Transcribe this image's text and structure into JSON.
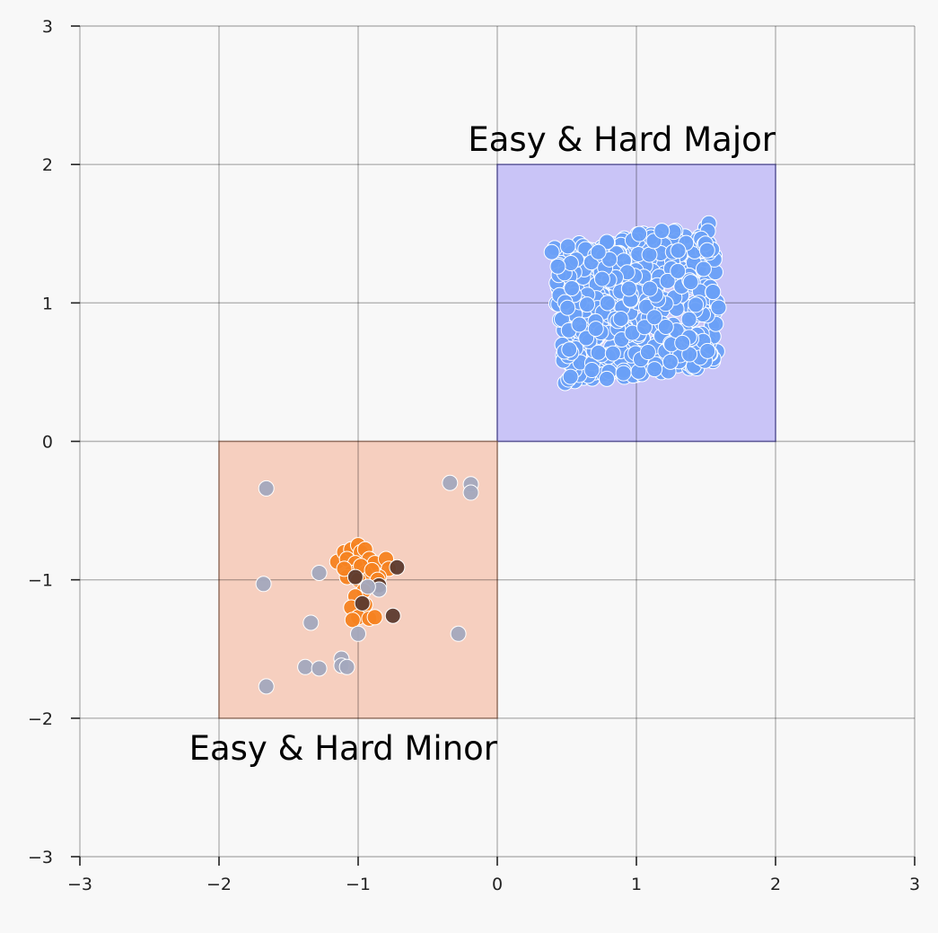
{
  "chart_data": {
    "type": "scatter",
    "title": "",
    "xlabel": "",
    "ylabel": "",
    "xlim": [
      -3,
      3
    ],
    "ylim": [
      -3,
      3
    ],
    "grid": true,
    "x_ticks": [
      -3,
      -2,
      -1,
      0,
      1,
      2,
      3
    ],
    "y_ticks": [
      -3,
      -2,
      -1,
      0,
      1,
      2,
      3
    ],
    "x_tick_labels": [
      "−3",
      "−2",
      "−1",
      "0",
      "1",
      "2",
      "3"
    ],
    "y_tick_labels": [
      "−3",
      "−2",
      "−1",
      "0",
      "1",
      "2",
      "3"
    ],
    "regions": [
      {
        "label": "Easy & Hard Major",
        "x0": 0,
        "x1": 2,
        "y0": 0,
        "y1": 2,
        "fill": "#c9c4f7",
        "stroke": "#7f79d0",
        "label_anchor": "end",
        "label_x": 2.0,
        "label_y": 2.1
      },
      {
        "label": "Easy & Hard Minor",
        "x0": -2,
        "x1": 0,
        "y0": -2,
        "y1": 0,
        "fill": "#f6cfbf",
        "stroke": "#c99a86",
        "label_anchor": "end",
        "label_x": 0.0,
        "label_y": -2.3
      }
    ],
    "series": [
      {
        "color": "#6aa0f7",
        "cluster": {
          "corners": [
            [
              0.38,
              1.4
            ],
            [
              1.55,
              1.58
            ],
            [
              1.62,
              0.55
            ],
            [
              0.48,
              0.41
            ]
          ],
          "count": 420,
          "seed": 7
        },
        "points": [
          [
            0.45,
            1.38
          ],
          [
            0.53,
            1.36
          ],
          [
            0.6,
            1.3
          ],
          [
            0.48,
            1.21
          ],
          [
            0.52,
            1.12
          ],
          [
            0.45,
            1.02
          ],
          [
            0.48,
            0.88
          ],
          [
            0.52,
            0.78
          ],
          [
            0.5,
            0.7
          ],
          [
            0.56,
            0.6
          ],
          [
            0.55,
            0.53
          ],
          [
            0.62,
            0.46
          ],
          [
            0.7,
            0.58
          ],
          [
            0.8,
            0.48
          ],
          [
            0.9,
            0.52
          ],
          [
            1.0,
            0.48
          ],
          [
            1.1,
            0.53
          ],
          [
            1.18,
            0.5
          ],
          [
            1.3,
            0.55
          ],
          [
            1.38,
            0.53
          ],
          [
            1.45,
            0.58
          ],
          [
            1.55,
            0.58
          ],
          [
            1.58,
            0.65
          ],
          [
            1.52,
            0.75
          ],
          [
            1.55,
            0.85
          ],
          [
            1.5,
            0.95
          ],
          [
            1.55,
            1.05
          ],
          [
            1.5,
            1.15
          ],
          [
            1.45,
            1.25
          ],
          [
            1.38,
            1.35
          ],
          [
            1.35,
            1.48
          ],
          [
            1.28,
            1.52
          ],
          [
            1.15,
            1.48
          ],
          [
            1.05,
            1.5
          ],
          [
            0.95,
            1.45
          ],
          [
            0.85,
            1.42
          ],
          [
            0.75,
            1.4
          ],
          [
            0.68,
            1.38
          ],
          [
            0.7,
            1.2
          ],
          [
            0.8,
            1.25
          ],
          [
            0.92,
            1.3
          ],
          [
            1.0,
            1.38
          ],
          [
            1.12,
            1.35
          ],
          [
            1.22,
            1.3
          ],
          [
            1.3,
            1.2
          ],
          [
            1.38,
            1.12
          ],
          [
            1.42,
            1.0
          ],
          [
            1.4,
            0.88
          ],
          [
            1.35,
            0.8
          ],
          [
            1.3,
            0.68
          ],
          [
            1.22,
            0.62
          ],
          [
            1.1,
            0.68
          ],
          [
            1.0,
            0.75
          ],
          [
            0.92,
            0.7
          ],
          [
            0.82,
            0.68
          ],
          [
            0.72,
            0.75
          ],
          [
            0.65,
            0.82
          ],
          [
            0.62,
            0.95
          ],
          [
            0.65,
            1.05
          ],
          [
            0.75,
            1.1
          ],
          [
            0.85,
            1.05
          ],
          [
            0.95,
            1.1
          ],
          [
            1.05,
            1.15
          ],
          [
            1.15,
            1.08
          ],
          [
            1.22,
            0.98
          ],
          [
            1.15,
            0.9
          ],
          [
            1.05,
            0.88
          ],
          [
            0.95,
            0.85
          ],
          [
            0.85,
            0.9
          ],
          [
            0.78,
            0.95
          ],
          [
            1.25,
            1.4
          ],
          [
            0.6,
            1.2
          ],
          [
            1.5,
            0.7
          ],
          [
            0.95,
            0.6
          ],
          [
            1.18,
            1.22
          ]
        ]
      },
      {
        "color": "#f58220",
        "cluster": {
          "center": [
            -0.97,
            -0.92
          ],
          "spread": [
            0.12,
            0.12
          ],
          "count": 0,
          "seed": 3
        },
        "points": [
          [
            -1.15,
            -0.87
          ],
          [
            -1.1,
            -0.8
          ],
          [
            -1.05,
            -0.78
          ],
          [
            -1.0,
            -0.75
          ],
          [
            -0.98,
            -0.8
          ],
          [
            -0.95,
            -0.78
          ],
          [
            -1.08,
            -0.85
          ],
          [
            -1.02,
            -0.88
          ],
          [
            -0.92,
            -0.85
          ],
          [
            -0.88,
            -0.88
          ],
          [
            -0.8,
            -0.85
          ],
          [
            -0.78,
            -0.92
          ],
          [
            -0.85,
            -0.98
          ],
          [
            -0.9,
            -1.02
          ],
          [
            -0.95,
            -0.95
          ],
          [
            -1.05,
            -0.95
          ],
          [
            -1.08,
            -0.98
          ],
          [
            -1.0,
            -1.0
          ],
          [
            -0.96,
            -1.08
          ],
          [
            -1.02,
            -1.12
          ],
          [
            -1.05,
            -1.2
          ],
          [
            -0.95,
            -1.18
          ],
          [
            -1.0,
            -1.27
          ],
          [
            -1.04,
            -1.29
          ],
          [
            -0.92,
            -1.28
          ],
          [
            -0.88,
            -1.27
          ],
          [
            -1.1,
            -0.92
          ],
          [
            -0.98,
            -0.9
          ],
          [
            -0.9,
            -0.93
          ],
          [
            -0.86,
            -1.0
          ]
        ]
      },
      {
        "color": "#5c3a2e",
        "points": [
          [
            -0.72,
            -0.91
          ],
          [
            -0.75,
            -1.26
          ],
          [
            -0.85,
            -1.04
          ],
          [
            -0.97,
            -1.17
          ],
          [
            -1.02,
            -0.98
          ]
        ]
      },
      {
        "color": "#a3a8bd",
        "points": [
          [
            -1.66,
            -0.34
          ],
          [
            -0.34,
            -0.3
          ],
          [
            -0.19,
            -0.31
          ],
          [
            -0.19,
            -0.37
          ],
          [
            -1.68,
            -1.03
          ],
          [
            -1.28,
            -0.95
          ],
          [
            -1.34,
            -1.31
          ],
          [
            -0.28,
            -1.39
          ],
          [
            -1.0,
            -1.39
          ],
          [
            -1.12,
            -1.57
          ],
          [
            -1.12,
            -1.62
          ],
          [
            -1.08,
            -1.63
          ],
          [
            -1.38,
            -1.63
          ],
          [
            -1.28,
            -1.64
          ],
          [
            -1.66,
            -1.77
          ],
          [
            -0.85,
            -1.07
          ],
          [
            -0.93,
            -1.05
          ]
        ]
      }
    ]
  }
}
